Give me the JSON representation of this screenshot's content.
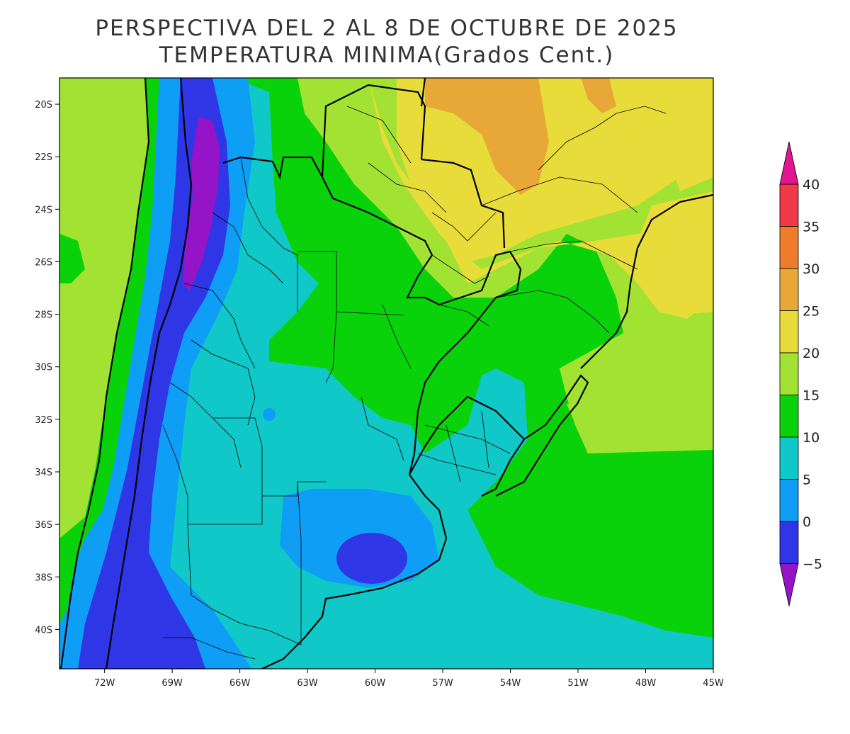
{
  "title_line1": "PERSPECTIVA DEL 2 AL 8 DE OCTUBRE DE 2025",
  "title_line2": "TEMPERATURA MINIMA(Grados Cent.)",
  "map": {
    "lon_range": [
      -74,
      -45
    ],
    "lat_range": [
      -41.5,
      -19
    ],
    "lon_ticks": [
      "72W",
      "69W",
      "66W",
      "63W",
      "60W",
      "57W",
      "54W",
      "51W",
      "48W",
      "45W"
    ],
    "lat_ticks": [
      "20S",
      "22S",
      "24S",
      "26S",
      "28S",
      "30S",
      "32S",
      "34S",
      "36S",
      "38S",
      "40S"
    ]
  },
  "colorbar": {
    "labels": [
      "40",
      "35",
      "30",
      "25",
      "20",
      "15",
      "10",
      "5",
      "0",
      "−5"
    ],
    "colors": {
      "above_40": "#e0158f",
      "35_40": "#f03a47",
      "30_35": "#ee7c2b",
      "25_30": "#e8a838",
      "20_25": "#e8dc3a",
      "15_20": "#a2e232",
      "10_15": "#0ad20a",
      "5_10": "#10c8c8",
      "0_5": "#0f9ef5",
      "m5_0": "#2f36e6",
      "below_m5": "#9614c8"
    }
  }
}
